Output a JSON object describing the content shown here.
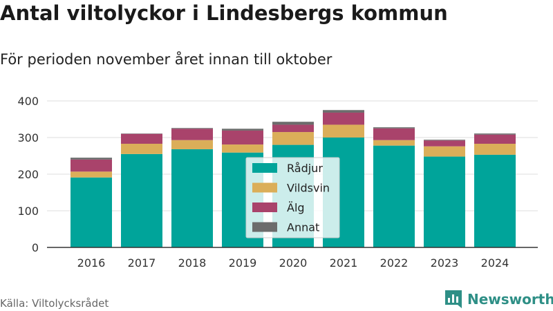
{
  "title": "Antal viltolyckor i Lindesbergs kommun",
  "subtitle": "För perioden november året innan till oktober",
  "source": "Källa: Viltolycksrådet",
  "brand": {
    "name": "Newsworthy",
    "logo_icon": "bar-chart-logo-icon",
    "color": "#2e8f86"
  },
  "chart_data": {
    "type": "bar",
    "stacked": true,
    "categories": [
      "2016",
      "2017",
      "2018",
      "2019",
      "2020",
      "2021",
      "2022",
      "2023",
      "2024"
    ],
    "series": [
      {
        "name": "Rådjur",
        "color": "#00a49a",
        "values": [
          191,
          255,
          268,
          259,
          280,
          300,
          278,
          248,
          253
        ]
      },
      {
        "name": "Vildsvin",
        "color": "#dbae59",
        "values": [
          16,
          28,
          25,
          22,
          35,
          35,
          15,
          28,
          30
        ]
      },
      {
        "name": "Älg",
        "color": "#a9436b",
        "values": [
          33,
          27,
          31,
          38,
          20,
          33,
          32,
          16,
          25
        ]
      },
      {
        "name": "Annat",
        "color": "#6c6c6c",
        "values": [
          5,
          1,
          2,
          5,
          8,
          7,
          3,
          2,
          3
        ]
      }
    ],
    "ylim": [
      0,
      400
    ],
    "yticks": [
      0,
      100,
      200,
      300,
      400
    ],
    "grid": true,
    "legend": "center"
  }
}
